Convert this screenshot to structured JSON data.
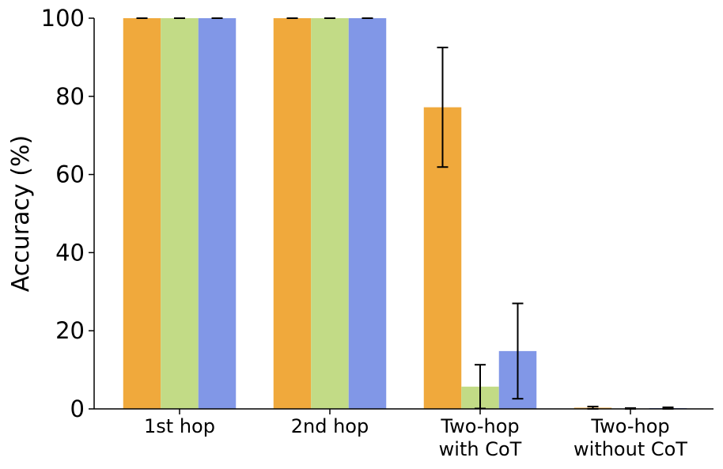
{
  "chart_data": {
    "type": "bar",
    "categories": [
      [
        "1st hop"
      ],
      [
        "2nd hop"
      ],
      [
        "Two-hop",
        "with CoT"
      ],
      [
        "Two-hop",
        "without CoT"
      ]
    ],
    "series": [
      {
        "color": "#f0a93c",
        "values": [
          100,
          100,
          77.2,
          0.3
        ],
        "errors": [
          0,
          0,
          15.3,
          0.3
        ]
      },
      {
        "color": "#c2db86",
        "values": [
          100,
          100,
          5.7,
          0.0
        ],
        "errors": [
          0,
          0,
          5.6,
          0.2
        ]
      },
      {
        "color": "#8197e7",
        "values": [
          100,
          100,
          14.8,
          0.2
        ],
        "errors": [
          0,
          0,
          12.2,
          0.2
        ]
      }
    ],
    "ylabel": "Accuracy (%)",
    "ylim": [
      0,
      100
    ],
    "yticks": [
      "0",
      "20",
      "40",
      "60",
      "80",
      "100"
    ],
    "grid": false,
    "legend": "none"
  }
}
